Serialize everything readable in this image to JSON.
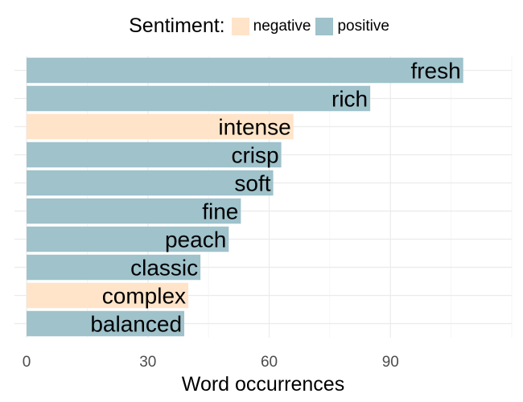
{
  "legend": {
    "title": "Sentiment:",
    "items": [
      {
        "label": "negative",
        "color": "#FFE4C9"
      },
      {
        "label": "positive",
        "color": "#9FC2CB"
      }
    ]
  },
  "chart_data": {
    "type": "bar",
    "orientation": "horizontal",
    "categories": [
      "fresh",
      "rich",
      "intense",
      "crisp",
      "soft",
      "fine",
      "peach",
      "classic",
      "complex",
      "balanced"
    ],
    "values": [
      108,
      85,
      66,
      63,
      61,
      53,
      50,
      43,
      40,
      39
    ],
    "sentiment": [
      "positive",
      "positive",
      "negative",
      "positive",
      "positive",
      "positive",
      "positive",
      "positive",
      "negative",
      "positive"
    ],
    "xlabel": "Word occurrences",
    "ylabel": "",
    "xlim": [
      -3,
      120
    ],
    "xticks": [
      0,
      30,
      60,
      90
    ],
    "grid": true,
    "legend_position": "top",
    "colors": {
      "negative": "#FFE4C9",
      "positive": "#9FC2CB"
    }
  }
}
